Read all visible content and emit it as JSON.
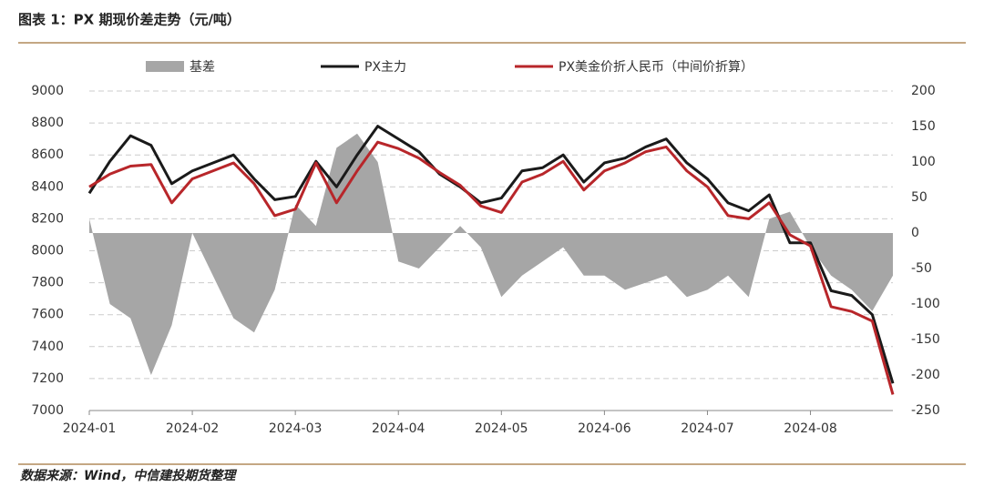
{
  "chart_data": {
    "type": "line",
    "title": "图表 1：PX 期现价差走势（元/吨）",
    "source": "数据来源：Wind，中信建投期货整理",
    "categories": [
      "2024-01",
      null,
      null,
      null,
      null,
      "2024-02",
      null,
      null,
      null,
      null,
      "2024-03",
      null,
      null,
      null,
      null,
      "2024-04",
      null,
      null,
      null,
      null,
      "2024-05",
      null,
      null,
      null,
      null,
      "2024-06",
      null,
      null,
      null,
      null,
      "2024-07",
      null,
      null,
      null,
      null,
      "2024-08",
      null,
      null,
      null,
      null
    ],
    "series": [
      {
        "name": "基差",
        "type": "area",
        "axis": "y2",
        "color": "#a6a6a6",
        "values": [
          20,
          -100,
          -120,
          -200,
          -130,
          0,
          -60,
          -120,
          -140,
          -80,
          40,
          10,
          120,
          140,
          100,
          -40,
          -50,
          -20,
          10,
          -20,
          -90,
          -60,
          -40,
          -20,
          -60,
          -60,
          -80,
          -70,
          -60,
          -90,
          -80,
          -60,
          -90,
          20,
          30,
          -20,
          -60,
          -80,
          -110,
          -60
        ]
      },
      {
        "name": "PX主力",
        "type": "line",
        "color": "#1a1a1a",
        "values": [
          8360,
          8560,
          8720,
          8660,
          8420,
          8500,
          8550,
          8600,
          8450,
          8320,
          8340,
          8560,
          8400,
          8600,
          8780,
          8700,
          8620,
          8480,
          8400,
          8300,
          8330,
          8500,
          8520,
          8600,
          8430,
          8550,
          8580,
          8650,
          8700,
          8550,
          8450,
          8300,
          8250,
          8350,
          8050,
          8050,
          7750,
          7720,
          7600,
          7170
        ]
      },
      {
        "name": "PX美金价折人民币（中间价折算）",
        "type": "line",
        "color": "#b8262a",
        "values": [
          8400,
          8480,
          8530,
          8540,
          8300,
          8450,
          8500,
          8550,
          8420,
          8220,
          8260,
          8550,
          8300,
          8500,
          8680,
          8640,
          8580,
          8490,
          8410,
          8280,
          8240,
          8430,
          8480,
          8560,
          8380,
          8500,
          8550,
          8620,
          8650,
          8500,
          8400,
          8220,
          8200,
          8300,
          8100,
          8030,
          7650,
          7620,
          7560,
          7100
        ]
      }
    ],
    "ylim": [
      7000,
      9000
    ],
    "yticks": [
      7000,
      7200,
      7400,
      7600,
      7800,
      8000,
      8200,
      8400,
      8600,
      8800,
      9000
    ],
    "y2lim": [
      -250,
      200
    ],
    "y2ticks": [
      -250,
      -200,
      -150,
      -100,
      -50,
      0,
      50,
      100,
      150,
      200
    ],
    "grid": true
  }
}
